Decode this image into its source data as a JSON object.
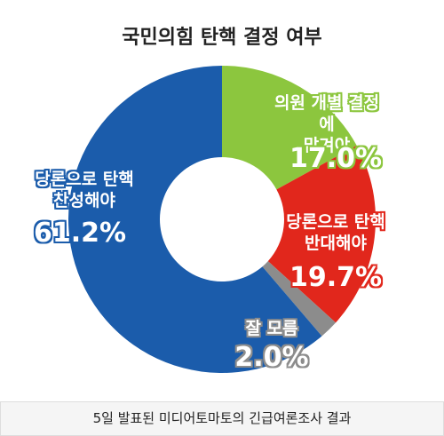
{
  "chart_data": {
    "type": "donut",
    "title": "국민의힘 탄핵 결정 여부",
    "caption": "5일 발표된 미디어토마토의 긴급여론조사 결과",
    "categories": [
      "당론으로 탄핵\n찬성해야",
      "의원 개별 결정에\n맡겨야",
      "당론으로 탄핵\n반대해야",
      "잘 모름"
    ],
    "values": [
      61.2,
      17.0,
      19.7,
      2.0
    ],
    "value_labels": [
      "61.2%",
      "17.0%",
      "19.7%",
      "2.0%"
    ],
    "colors": [
      "#1b5cab",
      "#8cc63e",
      "#e1271c",
      "#8c8c8c"
    ],
    "start_index": 1
  }
}
